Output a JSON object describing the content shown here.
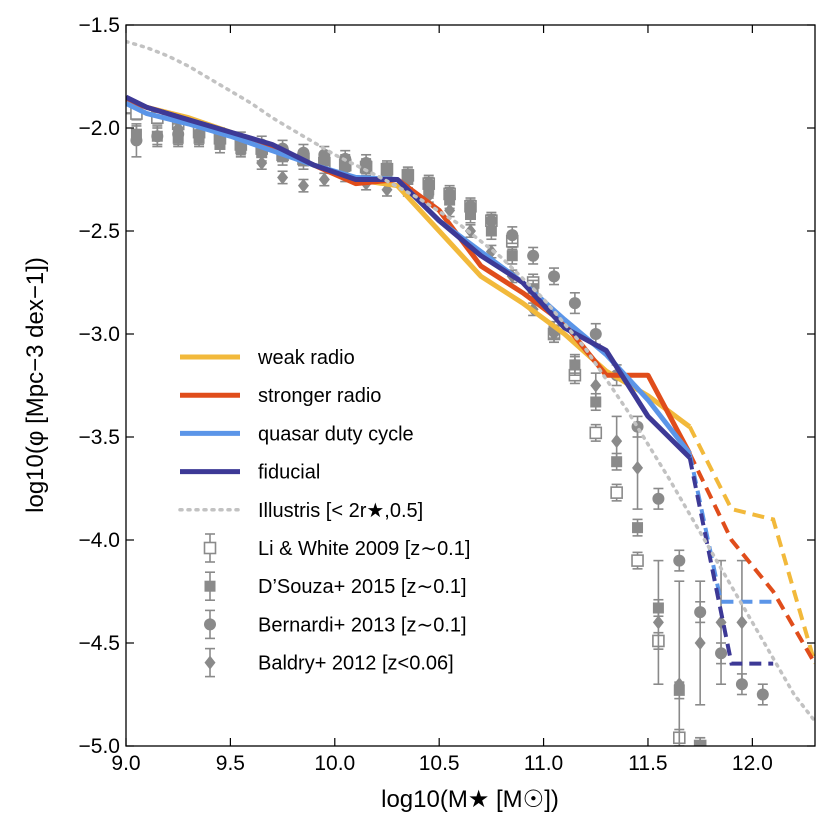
{
  "chart_data": {
    "type": "line",
    "xlabel": "log10(M★ [M☉])",
    "ylabel": "log10(φ [Mpc−3 dex−1])",
    "xlim": [
      9.0,
      12.3
    ],
    "ylim": [
      -5.0,
      -1.5
    ],
    "xticks": [
      "9.0",
      "9.5",
      "10.0",
      "10.5",
      "11.0",
      "11.5",
      "12.0"
    ],
    "xtick_values": [
      9.0,
      9.5,
      10.0,
      10.5,
      11.0,
      11.5,
      12.0
    ],
    "yticks": [
      "−1.5",
      "−2.0",
      "−2.5",
      "−3.0",
      "−3.5",
      "−4.0",
      "−4.5",
      "−5.0"
    ],
    "ytick_values": [
      -1.5,
      -2.0,
      -2.5,
      -3.0,
      -3.5,
      -4.0,
      -4.5,
      -5.0
    ],
    "legend_position": "lower-left",
    "colors": {
      "weak": "#f2b93b",
      "stronger": "#e04d1b",
      "quasar": "#5b95e8",
      "fiducial": "#3d3996",
      "illustris": "#c2c2c2",
      "obs": "#8a8a8a"
    },
    "series": [
      {
        "name": "weak radio",
        "key": "weak",
        "style": "solid",
        "legend_label": "weak radio",
        "x": [
          9.0,
          9.1,
          9.3,
          9.5,
          9.7,
          9.9,
          10.1,
          10.3,
          10.5,
          10.7,
          10.9,
          11.1,
          11.3,
          11.5,
          11.7
        ],
        "y": [
          -1.86,
          -1.9,
          -1.95,
          -2.02,
          -2.1,
          -2.18,
          -2.25,
          -2.28,
          -2.5,
          -2.72,
          -2.85,
          -3.0,
          -3.18,
          -3.3,
          -3.45
        ],
        "ext_x": [
          11.7,
          11.9,
          12.1,
          12.3
        ],
        "ext_y": [
          -3.45,
          -3.85,
          -3.9,
          -4.6
        ]
      },
      {
        "name": "stronger radio",
        "key": "stronger",
        "style": "solid",
        "legend_label": "stronger radio",
        "x": [
          9.0,
          9.1,
          9.3,
          9.5,
          9.7,
          9.9,
          10.1,
          10.2,
          10.3,
          10.5,
          10.7,
          10.9,
          11.1,
          11.3,
          11.5,
          11.7
        ],
        "y": [
          -1.86,
          -1.9,
          -1.96,
          -2.03,
          -2.1,
          -2.18,
          -2.27,
          -2.26,
          -2.25,
          -2.4,
          -2.67,
          -2.8,
          -2.95,
          -3.2,
          -3.2,
          -3.58
        ],
        "ext_x": [
          11.7,
          11.9,
          12.1,
          12.3
        ],
        "ext_y": [
          -3.58,
          -4.0,
          -4.25,
          -4.6
        ]
      },
      {
        "name": "quasar duty cycle",
        "key": "quasar",
        "style": "solid",
        "legend_label": "quasar duty cycle",
        "x": [
          9.0,
          9.1,
          9.3,
          9.5,
          9.7,
          9.9,
          10.1,
          10.3,
          10.5,
          10.7,
          10.9,
          11.1,
          11.3,
          11.5,
          11.7
        ],
        "y": [
          -1.88,
          -1.93,
          -1.98,
          -2.04,
          -2.11,
          -2.18,
          -2.24,
          -2.25,
          -2.45,
          -2.6,
          -2.75,
          -2.93,
          -3.1,
          -3.32,
          -3.58
        ],
        "ext_x": [
          11.7,
          11.85,
          12.1
        ],
        "ext_y": [
          -3.58,
          -4.3,
          -4.3
        ]
      },
      {
        "name": "fiducial",
        "key": "fiducial",
        "style": "solid",
        "legend_label": "fiducial",
        "x": [
          9.0,
          9.1,
          9.3,
          9.5,
          9.7,
          9.9,
          10.1,
          10.3,
          10.5,
          10.7,
          10.9,
          11.1,
          11.3,
          11.5,
          11.7
        ],
        "y": [
          -1.85,
          -1.9,
          -1.96,
          -2.02,
          -2.08,
          -2.18,
          -2.25,
          -2.25,
          -2.45,
          -2.62,
          -2.75,
          -2.97,
          -3.08,
          -3.4,
          -3.6
        ],
        "ext_x": [
          11.7,
          11.9,
          12.1
        ],
        "ext_y": [
          -3.6,
          -4.6,
          -4.6
        ]
      },
      {
        "name": "Illustris",
        "key": "illustris",
        "style": "dotted",
        "legend_label": "Illustris [< 2r★,0.5]",
        "x": [
          9.0,
          9.1,
          9.2,
          9.3,
          9.4,
          9.5,
          9.6,
          9.7,
          9.8,
          9.9,
          10.0,
          10.2,
          10.4,
          10.6,
          10.8,
          11.0,
          11.2,
          11.4,
          11.6,
          11.8,
          12.0,
          12.2,
          12.3
        ],
        "y": [
          -1.58,
          -1.61,
          -1.65,
          -1.7,
          -1.76,
          -1.82,
          -1.88,
          -1.95,
          -2.01,
          -2.07,
          -2.13,
          -2.23,
          -2.34,
          -2.47,
          -2.63,
          -2.83,
          -3.07,
          -3.37,
          -3.7,
          -4.05,
          -4.4,
          -4.75,
          -4.88
        ]
      }
    ],
    "observations": [
      {
        "name": "Li & White 2009",
        "legend_label": "Li & White 2009 [z∼0.1]",
        "marker": "open-square",
        "x": [
          9.0,
          9.05,
          9.15,
          9.25,
          9.35,
          9.45,
          9.55,
          9.65,
          9.75,
          9.85,
          9.95,
          10.05,
          10.15,
          10.25,
          10.35,
          10.45,
          10.55,
          10.65,
          10.75,
          10.85,
          10.95,
          11.05,
          11.15,
          11.25,
          11.35,
          11.45,
          11.55,
          11.65,
          11.75
        ],
        "y": [
          -1.9,
          -1.93,
          -1.95,
          -1.98,
          -2.02,
          -2.05,
          -2.08,
          -2.1,
          -2.13,
          -2.15,
          -2.17,
          -2.18,
          -2.19,
          -2.2,
          -2.23,
          -2.27,
          -2.32,
          -2.38,
          -2.45,
          -2.55,
          -2.75,
          -3.0,
          -3.2,
          -3.48,
          -3.77,
          -4.1,
          -4.49,
          -4.96,
          -5.0
        ],
        "err": [
          0.03,
          0.03,
          0.03,
          0.03,
          0.03,
          0.03,
          0.03,
          0.03,
          0.03,
          0.03,
          0.03,
          0.03,
          0.03,
          0.03,
          0.03,
          0.03,
          0.03,
          0.03,
          0.03,
          0.04,
          0.04,
          0.04,
          0.04,
          0.04,
          0.04,
          0.04,
          0.04,
          0.04,
          0.04
        ]
      },
      {
        "name": "D'Souza+ 2015",
        "legend_label": "D’Souza+ 2015 [z∼0.1]",
        "marker": "square",
        "x": [
          9.05,
          9.15,
          9.25,
          9.35,
          9.45,
          9.55,
          9.65,
          9.75,
          9.85,
          9.95,
          10.05,
          10.15,
          10.25,
          10.35,
          10.45,
          10.55,
          10.65,
          10.75,
          10.85,
          10.95,
          11.05,
          11.15,
          11.25,
          11.35,
          11.45,
          11.55,
          11.65,
          11.75
        ],
        "y": [
          -2.03,
          -2.04,
          -2.05,
          -2.05,
          -2.08,
          -2.1,
          -2.12,
          -2.14,
          -2.16,
          -2.16,
          -2.17,
          -2.19,
          -2.22,
          -2.25,
          -2.3,
          -2.35,
          -2.42,
          -2.5,
          -2.62,
          -2.78,
          -2.98,
          -3.15,
          -3.33,
          -3.62,
          -3.94,
          -4.33,
          -4.73,
          -5.0
        ],
        "err": [
          0.04,
          0.04,
          0.04,
          0.04,
          0.04,
          0.04,
          0.04,
          0.04,
          0.04,
          0.04,
          0.04,
          0.04,
          0.04,
          0.04,
          0.04,
          0.04,
          0.04,
          0.04,
          0.04,
          0.04,
          0.04,
          0.04,
          0.04,
          0.04,
          0.04,
          0.04,
          0.04,
          0.04
        ]
      },
      {
        "name": "Bernardi+ 2013",
        "legend_label": "Bernardi+ 2013 [z∼0.1]",
        "marker": "circle",
        "x": [
          9.05,
          9.15,
          9.25,
          9.35,
          9.45,
          9.55,
          9.65,
          9.75,
          9.85,
          9.95,
          10.05,
          10.15,
          10.25,
          10.35,
          10.45,
          10.55,
          10.65,
          10.75,
          10.85,
          10.95,
          11.05,
          11.15,
          11.25,
          11.35,
          11.45,
          11.55,
          11.65,
          11.75,
          11.85,
          11.95,
          12.05
        ],
        "y": [
          -2.06,
          -2.04,
          -2.03,
          -2.03,
          -2.04,
          -2.06,
          -2.08,
          -2.1,
          -2.12,
          -2.13,
          -2.15,
          -2.17,
          -2.2,
          -2.23,
          -2.27,
          -2.32,
          -2.38,
          -2.45,
          -2.52,
          -2.62,
          -2.72,
          -2.85,
          -3.0,
          -3.2,
          -3.45,
          -3.8,
          -4.1,
          -4.35,
          -4.55,
          -4.7,
          -4.75
        ],
        "err": [
          0.08,
          0.05,
          0.05,
          0.04,
          0.04,
          0.04,
          0.04,
          0.04,
          0.04,
          0.04,
          0.04,
          0.04,
          0.04,
          0.04,
          0.04,
          0.04,
          0.04,
          0.04,
          0.04,
          0.04,
          0.04,
          0.05,
          0.05,
          0.05,
          0.05,
          0.05,
          0.05,
          0.05,
          0.05,
          0.05,
          0.05
        ]
      },
      {
        "name": "Baldry+ 2012",
        "legend_label": "Baldry+ 2012 [z<0.06]",
        "marker": "diamond",
        "x": [
          9.25,
          9.35,
          9.45,
          9.55,
          9.65,
          9.75,
          9.85,
          9.95,
          10.05,
          10.15,
          10.25,
          10.35,
          10.45,
          10.55,
          10.65,
          10.75,
          10.85,
          10.95,
          11.05,
          11.15,
          11.25,
          11.35,
          11.45,
          11.55,
          11.65,
          11.75,
          11.85,
          11.95
        ],
        "y": [
          -2.0,
          -2.05,
          -2.07,
          -2.1,
          -2.17,
          -2.24,
          -2.28,
          -2.25,
          -2.23,
          -2.27,
          -2.3,
          -2.3,
          -2.33,
          -2.4,
          -2.5,
          -2.6,
          -2.72,
          -2.88,
          -3.0,
          -3.15,
          -3.25,
          -3.52,
          -3.65,
          -4.4,
          -4.7,
          -4.5,
          -4.4,
          -4.4
        ],
        "err": [
          0.03,
          0.03,
          0.03,
          0.03,
          0.03,
          0.03,
          0.03,
          0.03,
          0.03,
          0.03,
          0.03,
          0.03,
          0.03,
          0.03,
          0.03,
          0.03,
          0.03,
          0.03,
          0.04,
          0.05,
          0.06,
          0.12,
          0.2,
          0.3,
          0.5,
          0.3,
          0.3,
          0.3
        ]
      }
    ]
  }
}
